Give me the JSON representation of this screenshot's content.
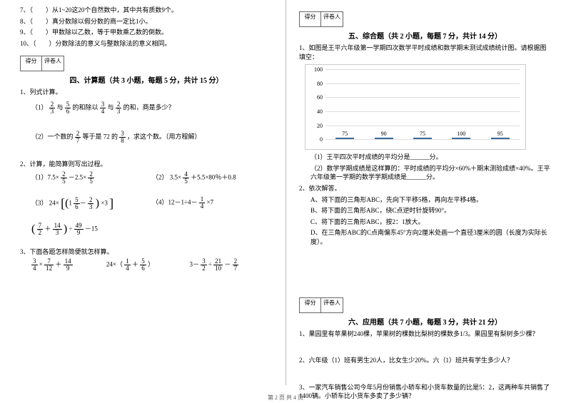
{
  "left": {
    "tf": [
      "7、（　　）从1~20这20个自然数中，其中共有质数9个。",
      "8、（　　）真分数除以假分数的商一定比1小。",
      "9、（　　）甲数除以乙数，等于甲数乘乙数的倒数。",
      "10、（　　）分数除法的意义与整数除法的意义相同。"
    ],
    "score_head": [
      "得分",
      "评卷人"
    ],
    "sec4_title": "四、计算题（共 3 小题，每题 5 分，共计 15 分）",
    "q1_title": "1、列式计算。",
    "q1_1_prefix": "（1）",
    "q1_1_a_n": "2",
    "q1_1_a_d": "3",
    "q1_1_mid1": "与",
    "q1_1_b_n": "5",
    "q1_1_b_d": "6",
    "q1_1_mid2": "的和除以",
    "q1_1_c_n": "3",
    "q1_1_c_d": "4",
    "q1_1_mid3": "与",
    "q1_1_d_n": "2",
    "q1_1_d_d": "3",
    "q1_1_suffix": "的和，商是多少？",
    "q1_2_prefix": "（2）一个数的",
    "q1_2_a_n": "2",
    "q1_2_a_d": "7",
    "q1_2_mid": "等于是 72 的",
    "q1_2_b_n": "3",
    "q1_2_b_d": "8",
    "q1_2_suffix": "，求这个数。（用方程解）",
    "q2_title": "2、计算，能简算则写出过程。",
    "e1a": "（1）7.5×",
    "e1a_n": "2",
    "e1a_d": "5",
    "e1a_mid": "－2.5×",
    "e1a2_n": "2",
    "e1a2_d": "5",
    "e2a": "（2）",
    "e2a_pre": "3.5×",
    "e2a_n": "4",
    "e2a_d": "5",
    "e2a_suf": "＋5.5×80％＋0.8",
    "e3a": "（3）",
    "e3a_txt1": "24×",
    "e3a_in1_n": "5",
    "e3a_in1_d": "6",
    "e3a_in2_n": "2",
    "e3a_in2_d": "3",
    "e3a_txt2": "×3",
    "e4a": "（4）12－1÷4－",
    "e4a_n": "1",
    "e4a_d": "4",
    "e4a_suf": "×7",
    "e5_p1_n": "7",
    "e5_p1_d": "2",
    "e5_plus": "＋",
    "e5_p2_n": "14",
    "e5_p2_d": "3",
    "e5_div": "÷",
    "e5_p3_n": "49",
    "e5_p3_d": "9",
    "e5_minus": "－15",
    "q3_title": "3、下面各题怎样简便就怎样算。",
    "e6_a_n": "3",
    "e6_a_d": "4",
    "e6_x": "×",
    "e6_b_n": "7",
    "e6_b_d": "12",
    "e6_p": "＋",
    "e6_c_n": "14",
    "e6_c_d": "9",
    "e7_pre": "24×（",
    "e7_a_n": "1",
    "e7_a_d": "4",
    "e7_p": "＋",
    "e7_b_n": "5",
    "e7_b_d": "6",
    "e7_suf": "）",
    "e8_pre": "3－",
    "e8_a_n": "3",
    "e8_a_d": "2",
    "e8_d": "÷",
    "e8_b_n": "21",
    "e8_b_d": "10",
    "e8_m": "－",
    "e8_c_n": "2",
    "e8_c_d": "7"
  },
  "right": {
    "score_head": [
      "得分",
      "评卷人"
    ],
    "sec5_title": "五、综合题（共 2 小题，每题 7 分，共计 14 分）",
    "q1_intro": "1、如图是王平六年级第一学期四次数学平时成绩和数学期末测试成绩统计图。请根据图填空：",
    "chart": {
      "ymax": 100,
      "yticks": [
        0,
        20,
        40,
        60,
        80,
        100
      ],
      "bars": [
        {
          "label": "",
          "value": 75,
          "color": "#5b8ec4"
        },
        {
          "label": "",
          "value": 90,
          "color": "#5b8ec4"
        },
        {
          "label": "",
          "value": 75,
          "color": "#5b8ec4"
        },
        {
          "label": "",
          "value": 100,
          "color": "#5b8ec4"
        },
        {
          "label": "",
          "value": 95,
          "color": "#5b8ec4"
        }
      ]
    },
    "q1_1": "（1）王平四次平时成绩的平均分是______分。",
    "q1_2": "（2）数学学期成绩是这样算的：平时成绩的平均分×60%＋期末测验成绩×40%。王平六年级第一学期的数学学期成绩是______分。",
    "q2_title": "2、依次解答。",
    "q2_a": "A、将下面的三角形ABC，先向下平移5格，再向左平移4格。",
    "q2_b": "B、将下面的三角形ABC，绕C点逆时针旋转90°。",
    "q2_c": "C、将下面的三角形ABC，按2：1放大。",
    "q2_d": "D、在三角形ABC的C点南偏东45°方向2厘米处画一个直径3厘米的圆（长度为实际长度）。",
    "sec6_title": "六、应用题（共 7 小题，每题 3 分，共计 21 分）",
    "q6_1": "1、果园里有苹果树240棵，苹果树的棵数比梨树的棵数多1/3。果园里有梨树多少棵？",
    "q6_2": "2、六年级（1）班有男生20人，比女生少20%。六（1）班共有学生多少人？",
    "q6_3": "3、一家汽车销售公司今年5月份销售小轿车和小货车数量的比是5：2，这两种车共销售了1400辆。小轿车比小货车多卖了多少辆？"
  },
  "footer": "第 2 页 共 4 页"
}
